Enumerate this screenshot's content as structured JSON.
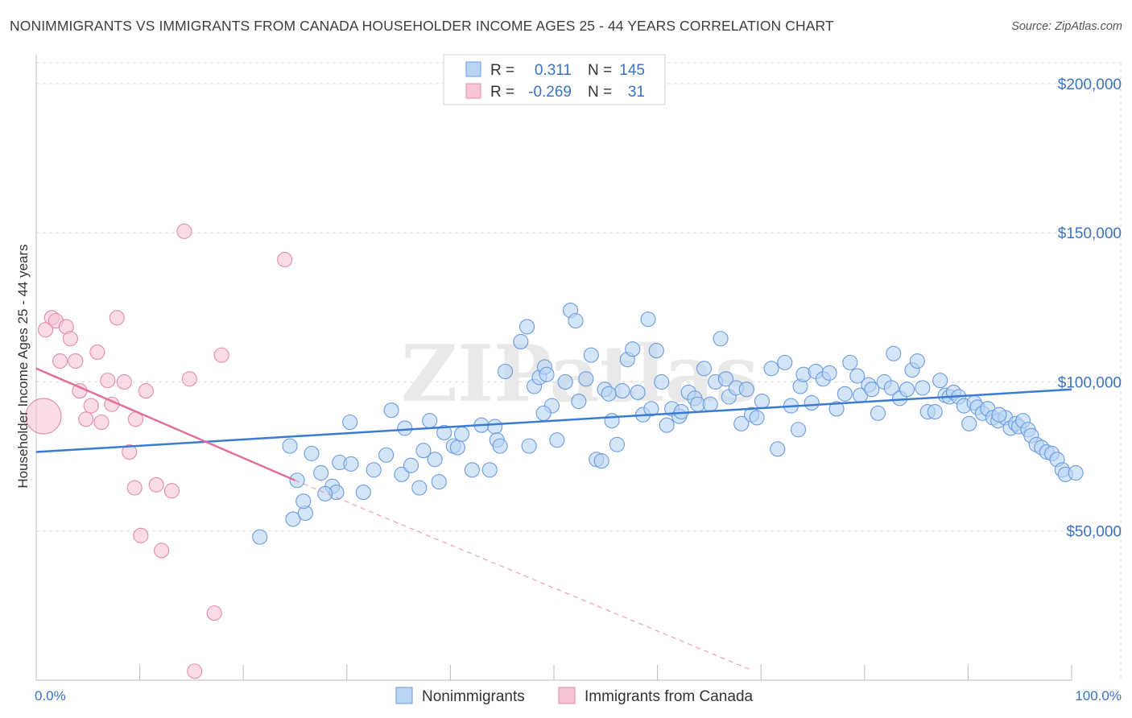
{
  "title": "NONIMMIGRANTS VS IMMIGRANTS FROM CANADA HOUSEHOLDER INCOME AGES 25 - 44 YEARS CORRELATION CHART",
  "source": "Source: ZipAtlas.com",
  "colors": {
    "blue": "#3c7bd4",
    "blue_fill": "#b9d3f3",
    "pink": "#e0709a",
    "pink_fill": "#f7c5d5",
    "tick_text": "#3a72c4",
    "grid": "#dcdcdc"
  },
  "legend_top": {
    "rows": [
      {
        "r_label": "R =",
        "r_value": "0.311",
        "n_label": "N =",
        "n_value": "145"
      },
      {
        "r_label": "R =",
        "r_value": "-0.269",
        "n_label": "N =",
        "n_value": "31"
      }
    ]
  },
  "watermark": "ZIPatlas",
  "chart_data": {
    "type": "scatter",
    "xlabel": "",
    "ylabel": "Householder Income Ages 25 - 44 years",
    "x_tick_labels": [
      "0.0%",
      "100.0%"
    ],
    "xlim": [
      0,
      100
    ],
    "ylim": [
      0,
      207000
    ],
    "y_ticks": [
      50000,
      100000,
      150000,
      200000
    ],
    "y_tick_labels": [
      "$50,000",
      "$100,000",
      "$150,000",
      "$200,000"
    ],
    "grid": true,
    "legend_position": "bottom-center",
    "series": [
      {
        "name": "Nonimmigrants",
        "color": "#3c7bd4",
        "trend": {
          "x0": 0,
          "y0": 76500,
          "x1": 100,
          "y1": 97500
        },
        "points": [
          [
            21.6,
            48000
          ],
          [
            24.8,
            54000
          ],
          [
            26.0,
            56000
          ],
          [
            25.8,
            60000
          ],
          [
            25.2,
            67000
          ],
          [
            24.5,
            78500
          ],
          [
            26.6,
            76000
          ],
          [
            27.5,
            69500
          ],
          [
            28.6,
            65000
          ],
          [
            29.0,
            63000
          ],
          [
            29.3,
            73000
          ],
          [
            30.4,
            72500
          ],
          [
            31.6,
            63000
          ],
          [
            30.3,
            86500
          ],
          [
            32.6,
            70500
          ],
          [
            33.8,
            75500
          ],
          [
            34.3,
            90500
          ],
          [
            35.3,
            69000
          ],
          [
            35.6,
            84500
          ],
          [
            36.2,
            72000
          ],
          [
            37.0,
            64500
          ],
          [
            37.4,
            77000
          ],
          [
            38.0,
            87000
          ],
          [
            38.5,
            74000
          ],
          [
            38.9,
            66500
          ],
          [
            39.4,
            83000
          ],
          [
            40.3,
            78500
          ],
          [
            40.7,
            78000
          ],
          [
            41.1,
            82500
          ],
          [
            42.1,
            70500
          ],
          [
            43.0,
            85500
          ],
          [
            43.8,
            70500
          ],
          [
            44.3,
            85000
          ],
          [
            44.5,
            80500
          ],
          [
            44.8,
            78500
          ],
          [
            45.3,
            103500
          ],
          [
            46.8,
            113500
          ],
          [
            47.4,
            118500
          ],
          [
            47.6,
            78500
          ],
          [
            48.1,
            98500
          ],
          [
            48.6,
            101500
          ],
          [
            49.1,
            105000
          ],
          [
            49.3,
            102500
          ],
          [
            49.8,
            92000
          ],
          [
            50.3,
            80500
          ],
          [
            51.1,
            100000
          ],
          [
            51.6,
            124000
          ],
          [
            52.1,
            120500
          ],
          [
            52.4,
            93500
          ],
          [
            53.1,
            101000
          ],
          [
            53.6,
            109000
          ],
          [
            54.1,
            74000
          ],
          [
            54.6,
            73500
          ],
          [
            54.9,
            97500
          ],
          [
            55.6,
            87000
          ],
          [
            56.1,
            79000
          ],
          [
            56.6,
            97000
          ],
          [
            57.1,
            107500
          ],
          [
            57.6,
            111000
          ],
          [
            58.1,
            96500
          ],
          [
            58.6,
            89000
          ],
          [
            59.1,
            121000
          ],
          [
            59.4,
            91000
          ],
          [
            59.9,
            110500
          ],
          [
            60.4,
            100000
          ],
          [
            60.9,
            85500
          ],
          [
            61.4,
            91000
          ],
          [
            62.1,
            88500
          ],
          [
            62.3,
            90000
          ],
          [
            63.0,
            96500
          ],
          [
            63.6,
            94500
          ],
          [
            63.9,
            92500
          ],
          [
            64.5,
            104500
          ],
          [
            65.1,
            92500
          ],
          [
            65.6,
            100000
          ],
          [
            66.1,
            114500
          ],
          [
            66.6,
            101000
          ],
          [
            66.9,
            95000
          ],
          [
            67.6,
            98000
          ],
          [
            68.1,
            86000
          ],
          [
            68.6,
            97500
          ],
          [
            69.1,
            89000
          ],
          [
            69.6,
            88000
          ],
          [
            70.1,
            93500
          ],
          [
            71.0,
            104500
          ],
          [
            71.6,
            77500
          ],
          [
            72.3,
            106500
          ],
          [
            72.9,
            92000
          ],
          [
            73.6,
            84000
          ],
          [
            73.8,
            98500
          ],
          [
            74.1,
            102500
          ],
          [
            74.9,
            93000
          ],
          [
            75.3,
            103500
          ],
          [
            76.0,
            101000
          ],
          [
            76.6,
            103000
          ],
          [
            77.3,
            91000
          ],
          [
            78.1,
            96000
          ],
          [
            78.6,
            106500
          ],
          [
            79.3,
            102000
          ],
          [
            79.6,
            95500
          ],
          [
            80.4,
            99000
          ],
          [
            80.7,
            97500
          ],
          [
            81.3,
            89500
          ],
          [
            81.9,
            100000
          ],
          [
            82.6,
            98000
          ],
          [
            82.8,
            109500
          ],
          [
            83.4,
            94500
          ],
          [
            84.1,
            97500
          ],
          [
            84.6,
            104000
          ],
          [
            85.1,
            107000
          ],
          [
            85.6,
            98000
          ],
          [
            86.1,
            90000
          ],
          [
            86.8,
            90000
          ],
          [
            87.3,
            100500
          ],
          [
            87.8,
            95500
          ],
          [
            88.2,
            95000
          ],
          [
            88.6,
            96500
          ],
          [
            89.1,
            95000
          ],
          [
            89.6,
            92000
          ],
          [
            90.1,
            86000
          ],
          [
            90.6,
            93000
          ],
          [
            90.9,
            91500
          ],
          [
            91.4,
            89500
          ],
          [
            91.9,
            91000
          ],
          [
            92.4,
            88000
          ],
          [
            92.9,
            87000
          ],
          [
            93.6,
            88000
          ],
          [
            94.1,
            84500
          ],
          [
            94.6,
            86000
          ],
          [
            94.9,
            85000
          ],
          [
            95.3,
            87000
          ],
          [
            95.8,
            84000
          ],
          [
            96.1,
            82000
          ],
          [
            96.6,
            79000
          ],
          [
            97.1,
            78000
          ],
          [
            97.6,
            76500
          ],
          [
            98.1,
            76000
          ],
          [
            98.6,
            74000
          ],
          [
            99.1,
            70500
          ],
          [
            99.4,
            69000
          ],
          [
            100.4,
            69500
          ],
          [
            93.0,
            89000
          ],
          [
            55.3,
            96000
          ],
          [
            49.0,
            89500
          ],
          [
            27.9,
            62500
          ]
        ]
      },
      {
        "name": "Immigrants from Canada",
        "color": "#e0709a",
        "trend": {
          "x0": 0,
          "y0": 104500,
          "x1": 25.0,
          "y1": 67000,
          "dash_x1": 69.0,
          "dash_y1": 3500
        },
        "points": [
          [
            0.7,
            88500,
            "big"
          ],
          [
            0.9,
            117500
          ],
          [
            1.5,
            121500
          ],
          [
            1.9,
            120500
          ],
          [
            2.3,
            107000
          ],
          [
            2.9,
            118500
          ],
          [
            3.3,
            114500
          ],
          [
            3.8,
            107000
          ],
          [
            4.2,
            97000
          ],
          [
            4.8,
            87500
          ],
          [
            5.3,
            92000
          ],
          [
            5.9,
            110000
          ],
          [
            6.3,
            86500
          ],
          [
            6.9,
            100500
          ],
          [
            7.3,
            92500
          ],
          [
            7.8,
            121500
          ],
          [
            8.5,
            100000
          ],
          [
            9.0,
            76500
          ],
          [
            9.5,
            64500
          ],
          [
            9.6,
            87500
          ],
          [
            10.1,
            48500
          ],
          [
            10.6,
            97000
          ],
          [
            11.6,
            65500
          ],
          [
            12.1,
            43500
          ],
          [
            13.1,
            63500
          ],
          [
            14.3,
            150500
          ],
          [
            14.8,
            101000
          ],
          [
            15.3,
            3000
          ],
          [
            17.2,
            22500
          ],
          [
            17.9,
            109000
          ],
          [
            24.0,
            141000
          ]
        ]
      }
    ]
  },
  "legend_bottom": {
    "items": [
      {
        "label": "Nonimmigrants"
      },
      {
        "label": "Immigrants from Canada"
      }
    ]
  }
}
